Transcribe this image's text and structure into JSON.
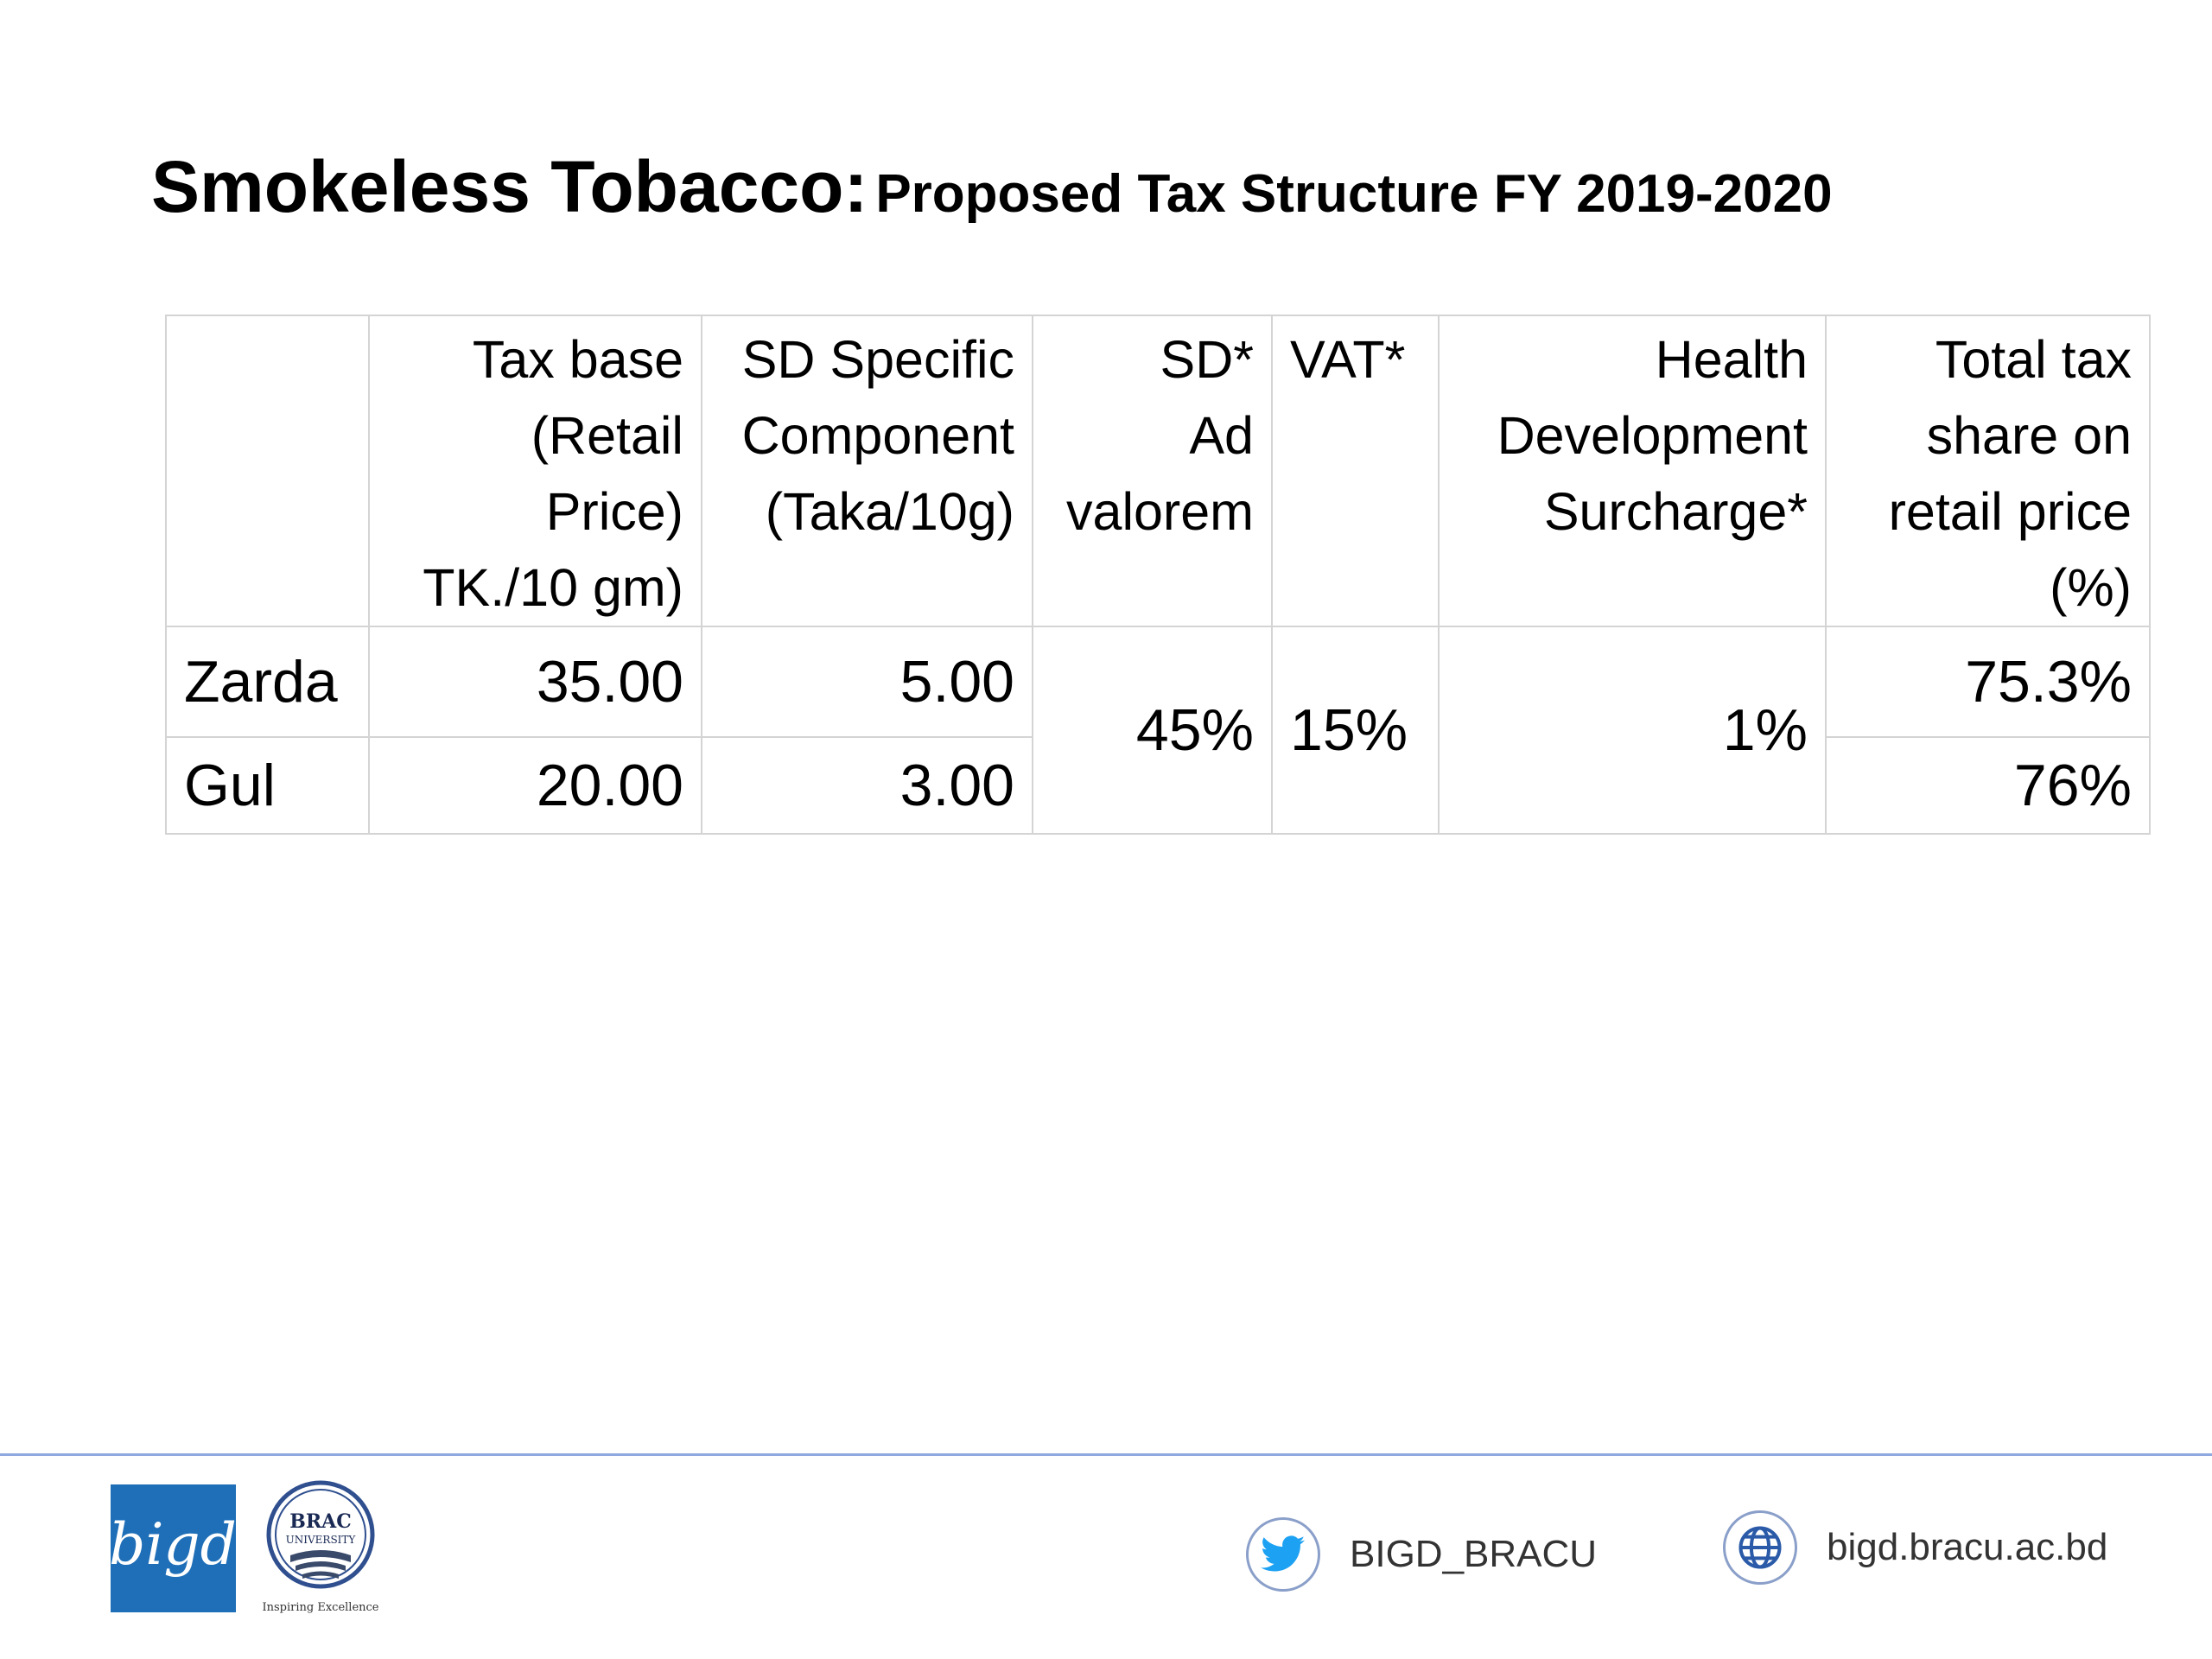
{
  "title": {
    "main": "Smokeless Tobacco:",
    "sub": "Proposed Tax Structure FY 2019-2020"
  },
  "table": {
    "headers": {
      "product": "",
      "tax_base": [
        "Tax base",
        "(Retail",
        "Price)",
        "TK./10 gm)"
      ],
      "sd_specific": [
        "SD Specific",
        "Component",
        "(Taka/10g)"
      ],
      "sd_ad_valorem": [
        "SD*",
        "Ad",
        "valorem"
      ],
      "vat": [
        "VAT*"
      ],
      "health_dev": [
        "Health",
        "Development",
        "Surcharge*"
      ],
      "total_tax": [
        "Total tax",
        "share on",
        "retail price",
        "(%)"
      ]
    },
    "rows": [
      {
        "product": "Zarda",
        "tax_base": "35.00",
        "sd_specific": "5.00",
        "total_tax": "75.3%"
      },
      {
        "product": "Gul",
        "tax_base": "20.00",
        "sd_specific": "3.00",
        "total_tax": "76%"
      }
    ],
    "shared": {
      "sd_ad_valorem": "45%",
      "vat": "15%",
      "health_dev": "1%"
    }
  },
  "footer": {
    "logo_bigd_text": "bigd",
    "logo_brac_text": [
      "BRAC",
      "UNIVERSITY"
    ],
    "logo_brac_tagline": "Inspiring Excellence",
    "twitter_handle": "BIGD_BRACU",
    "website": "bigd.bracu.ac.bd",
    "icons": {
      "twitter": "twitter-bird-icon",
      "web": "globe-icon"
    },
    "colors": {
      "rule": "#8fa8e0",
      "bigd_blue": "#1f6fb8",
      "twitter_blue": "#1da1f2",
      "globe_blue": "#2a5aa8"
    }
  }
}
